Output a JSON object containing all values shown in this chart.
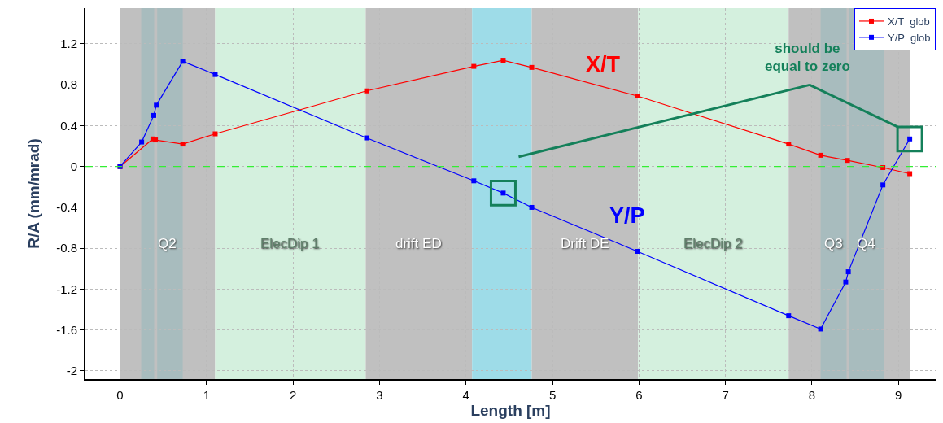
{
  "chart_data": {
    "type": "line",
    "xlabel": "Length [m]",
    "ylabel": "R/A (mm/mrad)",
    "xlim": [
      -0.4,
      9.43
    ],
    "ylim": [
      -2.08,
      1.55
    ],
    "xticks": [
      0,
      1,
      2,
      3,
      4,
      5,
      6,
      7,
      8,
      9
    ],
    "yticks": [
      -2,
      -1.6,
      -1.2,
      -0.8,
      -0.4,
      0,
      0.4,
      0.8,
      1.2
    ],
    "grid": true,
    "legend": "top right",
    "marker": "square",
    "line_style": "solid",
    "series": [
      {
        "name": "X/T  glob",
        "color": "#ff0000",
        "x": [
          0,
          0.25,
          0.38,
          0.41,
          0.725,
          1.1,
          2.85,
          4.09,
          4.43,
          4.76,
          5.98,
          7.73,
          8.1,
          8.41,
          8.82,
          9.13
        ],
        "values": [
          0,
          null,
          0.27,
          0.26,
          0.22,
          0.32,
          0.74,
          0.98,
          1.04,
          0.97,
          0.69,
          0.22,
          0.11,
          0.06,
          -0.01,
          -0.07
        ]
      },
      {
        "name": "Y/P  glob",
        "color": "#0000ff",
        "x": [
          0,
          0.25,
          0.39,
          0.42,
          0.725,
          1.1,
          2.85,
          4.09,
          4.43,
          4.76,
          5.98,
          7.73,
          8.1,
          8.39,
          8.42,
          8.82,
          9.13
        ],
        "values": [
          0,
          0.24,
          0.5,
          0.6,
          1.03,
          0.9,
          0.28,
          -0.14,
          -0.26,
          -0.4,
          -0.83,
          -1.46,
          -1.59,
          -1.13,
          -1.03,
          -0.18,
          0.27
        ]
      }
    ],
    "ref_lines": [
      {
        "axis": "y",
        "value": 0,
        "color": "#33ee33",
        "line_style": "dashed"
      }
    ],
    "bands": [
      {
        "axis": "x",
        "from": 0,
        "to": 1.1,
        "label": "Q2",
        "color": "#c0c0c0"
      },
      {
        "axis": "x",
        "from": 0.245,
        "to": 0.395,
        "color": "#a8bcbe"
      },
      {
        "axis": "x",
        "from": 0.43,
        "to": 0.725,
        "color": "#a8bcbe"
      },
      {
        "axis": "x",
        "from": 1.1,
        "to": 2.84,
        "label": "ElecDip 1",
        "color": "#d4f0de"
      },
      {
        "axis": "x",
        "from": 2.84,
        "to": 4.07,
        "label": "drift ED",
        "color": "#c0c0c0"
      },
      {
        "axis": "x",
        "from": 4.07,
        "to": 4.76,
        "color": "#9edce8"
      },
      {
        "axis": "x",
        "from": 4.76,
        "to": 5.99,
        "label": "Drift DE",
        "color": "#c0c0c0"
      },
      {
        "axis": "x",
        "from": 5.99,
        "to": 7.73,
        "label": "ElecDip 2",
        "color": "#d4f0de"
      },
      {
        "axis": "x",
        "from": 7.73,
        "to": 9.13,
        "color": "#c0c0c0"
      },
      {
        "axis": "x",
        "from": 8.1,
        "to": 8.4,
        "label": "Q3",
        "color": "#a8bcbe"
      },
      {
        "axis": "x",
        "from": 8.43,
        "to": 8.83,
        "label": "Q4",
        "color": "#a8bcbe"
      }
    ],
    "annotations": [
      "X/T",
      "Y/P",
      "should be\nequal to zero"
    ]
  }
}
